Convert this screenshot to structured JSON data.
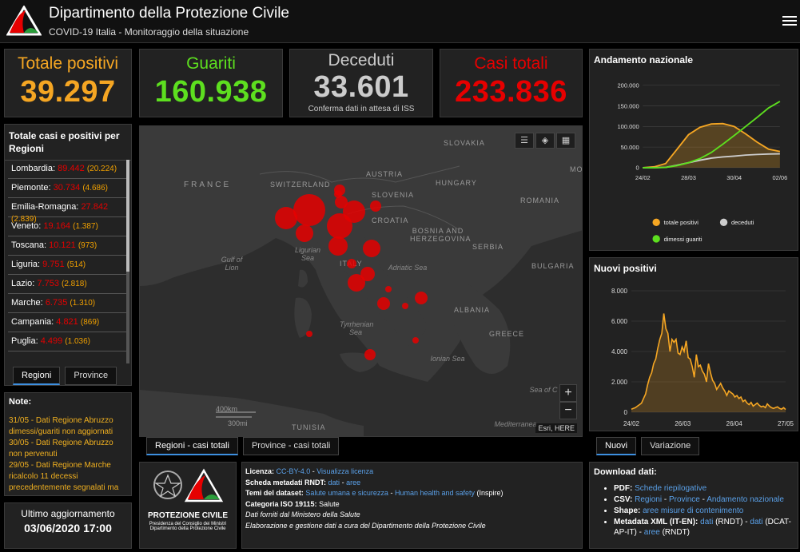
{
  "header": {
    "title": "Dipartimento della Protezione Civile",
    "subtitle": "COVID-19 Italia - Monitoraggio della situazione",
    "menu_icon": "hamburger-menu-icon"
  },
  "counters": {
    "positivi": {
      "label": "Totale positivi",
      "value": "39.297",
      "color": "#f5a623"
    },
    "guariti": {
      "label": "Guariti",
      "value": "160.938",
      "color": "#5ddf1f"
    },
    "deceduti": {
      "label": "Deceduti",
      "value": "33.601",
      "note": "Conferma dati in attesa di ISS",
      "color": "#cccccc"
    },
    "totali": {
      "label": "Casi totali",
      "value": "233.836",
      "color": "#e60000"
    }
  },
  "regions": {
    "title": "Totale casi e positivi per Regioni",
    "items": [
      {
        "name": "Lombardia:",
        "total": "89.442",
        "pos": "(20.224)"
      },
      {
        "name": "Piemonte:",
        "total": "30.734",
        "pos": "(4.686)"
      },
      {
        "name": "Emilia-Romagna:",
        "total": "27.842",
        "pos": "(2.839)"
      },
      {
        "name": "Veneto:",
        "total": "19.164",
        "pos": "(1.387)"
      },
      {
        "name": "Toscana:",
        "total": "10.121",
        "pos": "(973)"
      },
      {
        "name": "Liguria:",
        "total": "9.751",
        "pos": "(514)"
      },
      {
        "name": "Lazio:",
        "total": "7.753",
        "pos": "(2.818)"
      },
      {
        "name": "Marche:",
        "total": "6.735",
        "pos": "(1.310)"
      },
      {
        "name": "Campania:",
        "total": "4.821",
        "pos": "(869)"
      },
      {
        "name": "Puglia:",
        "total": "4.499",
        "pos": "(1.036)"
      }
    ],
    "tabs": [
      "Regioni",
      "Province"
    ]
  },
  "notes": {
    "title": "Note:",
    "lines": [
      "31/05 - Dati Regione Abruzzo dimessi/guariti non aggiornati",
      "30/05 - Dati Regione Abruzzo non pervenuti",
      "29/05 - Dati Regione Marche ricalcolo 11 decessi precedentemente segnalati ma"
    ]
  },
  "update": {
    "label": "Ultimo aggiornamento",
    "value": "03/06/2020 17:00"
  },
  "map": {
    "labels": {
      "france": "FRANCE",
      "switzerland": "SWITZERLAND",
      "austria": "AUSTRIA",
      "slovakia": "SLOVAKIA",
      "hungary": "HUNGARY",
      "slovenia": "SLOVENIA",
      "croatia": "CROATIA",
      "romania": "ROMANIA",
      "bosnia": "BOSNIA AND HERZEGOVINA",
      "serbia": "SERBIA",
      "bulgaria": "BULGARIA",
      "italy": "ITALY",
      "albania": "ALBANIA",
      "greece": "GREECE",
      "tunisia": "TUNISIA",
      "mo": "MO"
    },
    "seas": {
      "ligurian": "Ligurian Sea",
      "lion": "Gulf of Lion",
      "adriatic": "Adriatic Sea",
      "tyrrhenian": "Tyrrhenian Sea",
      "ionian": "Ionian Sea",
      "crete": "Sea of C",
      "med": "Mediterranea"
    },
    "scale_km": "400km",
    "scale_mi": "300mi",
    "attribution": "Esri, HERE",
    "zoom_in": "+",
    "zoom_out": "−",
    "tools": [
      "list-icon",
      "layers-icon",
      "qr-icon"
    ],
    "tabs": [
      "Regioni - casi totali",
      "Province - casi totali"
    ]
  },
  "credits": {
    "logo_text": "PROTEZIONE CIVILE",
    "logo_sub1": "Presidenza del Consiglio dei Ministri",
    "logo_sub2": "Dipartimento della Protezione Civile"
  },
  "info": {
    "licenza_lbl": "Licenza:",
    "licenza_link1": "CC-BY-4.0",
    "licenza_sep": " - ",
    "licenza_link2": "Visualizza licenza",
    "scheda_lbl": "Scheda metadati RNDT:",
    "scheda_link1": "dati",
    "scheda_sep": " - ",
    "scheda_link2": "aree",
    "temi_lbl": "Temi del dataset:",
    "temi_link1": "Salute umana e sicurezza",
    "temi_sep": " - ",
    "temi_link2": "Human health and safety",
    "temi_suffix": "(Inspire)",
    "cat_lbl": "Categoria ISO 19115:",
    "cat_val": "Salute",
    "line5": "Dati forniti dal Ministero della Salute",
    "line6": "Elaborazione e gestione dati a cura del Dipartimento della Protezione Civile"
  },
  "chart_andamento": {
    "title": "Andamento nazionale",
    "chart_data": {
      "type": "line",
      "ylim": [
        0,
        200000
      ],
      "yticks": [
        "0",
        "50.000",
        "100.000",
        "150.000",
        "200.000"
      ],
      "xticks": [
        "24/02",
        "28/03",
        "30/04",
        "02/06"
      ],
      "series": [
        {
          "name": "totale positivi",
          "color": "#f5a623",
          "values": [
            0,
            2000,
            10000,
            45000,
            80000,
            98000,
            106000,
            107000,
            100000,
            82000,
            62000,
            45000,
            39297
          ]
        },
        {
          "name": "deceduti",
          "color": "#cccccc",
          "values": [
            0,
            100,
            800,
            6000,
            12000,
            18000,
            23000,
            26000,
            28000,
            30500,
            32000,
            33000,
            33601
          ]
        },
        {
          "name": "dimessi guariti",
          "color": "#5ddf1f",
          "values": [
            0,
            50,
            600,
            5000,
            12000,
            22000,
            37000,
            57000,
            78000,
            100000,
            122000,
            145000,
            160938
          ]
        }
      ]
    }
  },
  "chart_nuovi": {
    "title": "Nuovi positivi",
    "chart_data": {
      "type": "area",
      "ylim": [
        0,
        8000
      ],
      "yticks": [
        "0",
        "2.000",
        "4.000",
        "6.000",
        "8.000"
      ],
      "xticks": [
        "24/02",
        "26/03",
        "26/04",
        "27/05"
      ],
      "values": [
        200,
        250,
        300,
        400,
        500,
        600,
        900,
        1200,
        1800,
        2300,
        2600,
        3200,
        3500,
        4200,
        4800,
        5200,
        6500,
        5500,
        5200,
        4000,
        4800,
        4600,
        4800,
        3900,
        3800,
        4300,
        4000,
        4700,
        3600,
        3500,
        3000,
        2300,
        3800,
        3000,
        3100,
        2700,
        2500,
        2000,
        3200,
        2600,
        2100,
        1900,
        1500,
        1700,
        1900,
        1600,
        1400,
        1100,
        1400,
        1300,
        1200,
        1000,
        1100,
        900,
        1000,
        700,
        800,
        600,
        500,
        650,
        400,
        500,
        600,
        450,
        350,
        400,
        300,
        550,
        400,
        300,
        250,
        300,
        350,
        250,
        200,
        300,
        180
      ],
      "tabs": [
        "Nuovi",
        "Variazione"
      ]
    }
  },
  "download": {
    "title": "Download dati:",
    "pdf_lbl": "PDF:",
    "pdf_link": "Schede riepilogative",
    "csv_lbl": "CSV:",
    "csv_link1": "Regioni",
    "csv_sep": " - ",
    "csv_link2": "Province",
    "csv_link3": "Andamento nazionale",
    "shape_lbl": "Shape:",
    "shape_link": "aree misure di contenimento",
    "meta_lbl": "Metadata XML (IT-EN):",
    "meta_link1": "dati",
    "meta_mid": "(RNDT) -",
    "meta_link2": "dati",
    "meta_mid2": "(DCAT-AP-IT) -",
    "meta_link3": "aree",
    "meta_end": "(RNDT)"
  }
}
